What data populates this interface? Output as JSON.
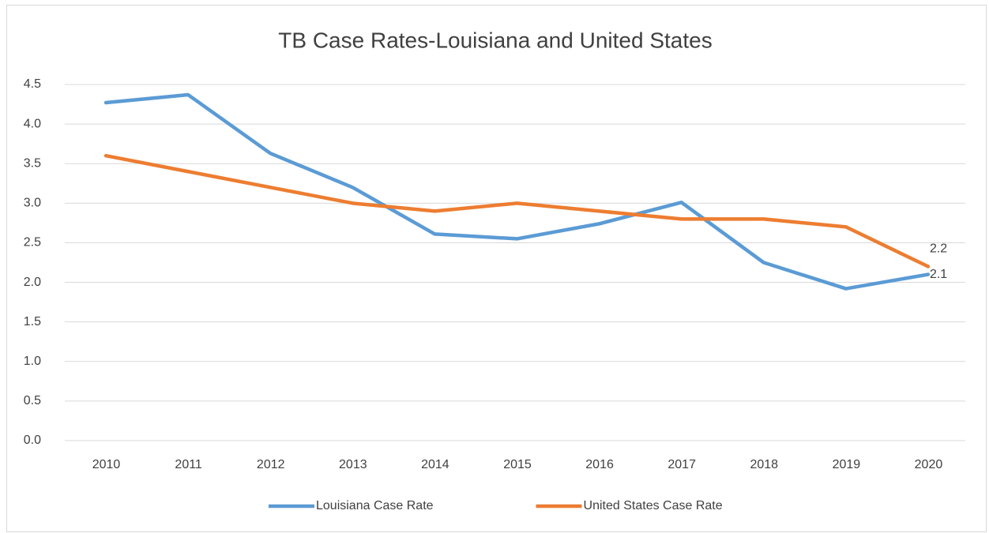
{
  "chart_data": {
    "type": "line",
    "title": "TB Case Rates-Louisiana and United States",
    "categories": [
      "2010",
      "2011",
      "2012",
      "2013",
      "2014",
      "2015",
      "2016",
      "2017",
      "2018",
      "2019",
      "2020"
    ],
    "series": [
      {
        "name": "Louisiana Case Rate",
        "color": "#5b9bd5",
        "values": [
          4.27,
          4.37,
          3.63,
          3.2,
          2.61,
          2.55,
          2.74,
          3.01,
          2.25,
          1.92,
          2.1
        ],
        "data_labels": "last"
      },
      {
        "name": "United States Case Rate",
        "color": "#ed7d31",
        "values": [
          3.6,
          3.4,
          3.2,
          3.0,
          2.9,
          3.0,
          2.9,
          2.8,
          2.8,
          2.7,
          2.2
        ],
        "data_labels": "last"
      }
    ],
    "ylim": [
      0,
      4.5
    ],
    "yticks": [
      {
        "value": 0,
        "label": "0.0"
      },
      0.5,
      {
        "value": 1,
        "label": "1.0"
      },
      1.5,
      {
        "value": 2,
        "label": "2.0"
      },
      2.5,
      {
        "value": 3,
        "label": "3.0"
      },
      3.5,
      {
        "value": 4,
        "label": "4.0"
      },
      4.5
    ],
    "grid": true,
    "legend": "bottom"
  }
}
